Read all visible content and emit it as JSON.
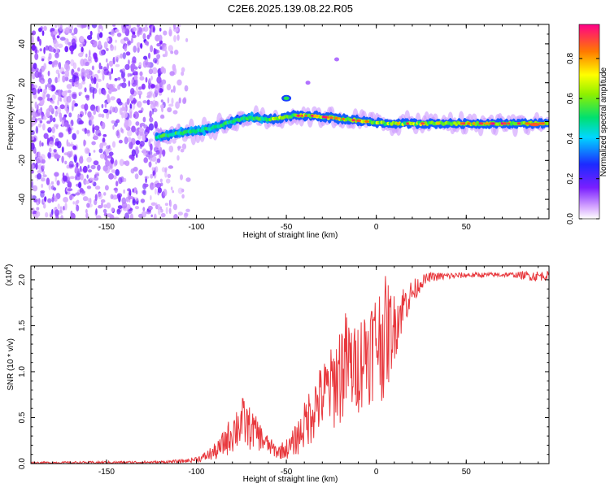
{
  "title": "C2E6.2025.139.08.22.R05",
  "chart_data": [
    {
      "type": "heatmap",
      "name": "spectrogram",
      "xlabel": "Height of straight line (km)",
      "ylabel": "Frequency (Hz)",
      "xlim": [
        -192,
        96
      ],
      "ylim": [
        -50,
        50
      ],
      "xticks": [
        -150,
        -100,
        -50,
        0,
        50
      ],
      "xtick_labels": [
        "-150",
        "-100",
        "-50",
        "0",
        "50"
      ],
      "yticks": [
        -40,
        -20,
        0,
        20,
        40
      ],
      "ytick_labels": [
        "-40",
        "-20",
        "0",
        "20",
        "40"
      ],
      "colorbar": {
        "label": "Normalized spectral amplitude",
        "range": [
          0,
          0.97
        ],
        "ticks": [
          0.0,
          0.2,
          0.4,
          0.6,
          0.8
        ],
        "tick_labels": [
          "0.0",
          "0.2",
          "0.4",
          "0.6",
          "0.8"
        ]
      },
      "noise_region": {
        "x": [
          -192,
          -118
        ],
        "amplitude": "low"
      },
      "ridge": [
        {
          "x": -122,
          "y": -8
        },
        {
          "x": -110,
          "y": -6
        },
        {
          "x": -100,
          "y": -5
        },
        {
          "x": -90,
          "y": -3
        },
        {
          "x": -80,
          "y": 0
        },
        {
          "x": -70,
          "y": 2
        },
        {
          "x": -60,
          "y": 1
        },
        {
          "x": -52,
          "y": 2
        },
        {
          "x": -45,
          "y": 3
        },
        {
          "x": -35,
          "y": 3
        },
        {
          "x": -25,
          "y": 2
        },
        {
          "x": -15,
          "y": 1
        },
        {
          "x": -5,
          "y": 0
        },
        {
          "x": 5,
          "y": -1
        },
        {
          "x": 20,
          "y": -1
        },
        {
          "x": 40,
          "y": -1
        },
        {
          "x": 60,
          "y": -1
        },
        {
          "x": 80,
          "y": -1
        },
        {
          "x": 95,
          "y": -1
        }
      ],
      "branch": [
        {
          "x": -50,
          "y": 12
        },
        {
          "x": -38,
          "y": 20
        },
        {
          "x": -22,
          "y": 32
        }
      ]
    },
    {
      "type": "line",
      "name": "snr",
      "xlabel": "Height of straight line (km)",
      "ylabel": "SNR (10 * v/v)",
      "scale_label": "(x10",
      "scale_exponent": "4",
      "multiplier": 10000,
      "xlim": [
        -192,
        96
      ],
      "ylim": [
        0,
        2.15
      ],
      "xticks": [
        -150,
        -100,
        -50,
        0,
        50
      ],
      "xtick_labels": [
        "-150",
        "-100",
        "-50",
        "0",
        "50"
      ],
      "yticks": [
        0.0,
        0.5,
        1.0,
        1.5,
        2.0
      ],
      "ytick_labels": [
        "0.0",
        "0.5",
        "1.0",
        "1.5",
        "2.0"
      ],
      "color": "#e8383d",
      "envelope": [
        {
          "x": -192,
          "lo": 0.0,
          "hi": 0.02
        },
        {
          "x": -120,
          "lo": 0.0,
          "hi": 0.03
        },
        {
          "x": -105,
          "lo": 0.01,
          "hi": 0.05
        },
        {
          "x": -97,
          "lo": 0.02,
          "hi": 0.1
        },
        {
          "x": -88,
          "lo": 0.04,
          "hi": 0.25
        },
        {
          "x": -80,
          "lo": 0.1,
          "hi": 0.55
        },
        {
          "x": -75,
          "lo": 0.12,
          "hi": 0.75
        },
        {
          "x": -68,
          "lo": 0.15,
          "hi": 0.55
        },
        {
          "x": -60,
          "lo": 0.1,
          "hi": 0.3
        },
        {
          "x": -55,
          "lo": 0.05,
          "hi": 0.2
        },
        {
          "x": -48,
          "lo": 0.05,
          "hi": 0.3
        },
        {
          "x": -42,
          "lo": 0.1,
          "hi": 0.55
        },
        {
          "x": -36,
          "lo": 0.2,
          "hi": 0.9
        },
        {
          "x": -30,
          "lo": 0.3,
          "hi": 1.1
        },
        {
          "x": -24,
          "lo": 0.35,
          "hi": 1.3
        },
        {
          "x": -18,
          "lo": 0.4,
          "hi": 1.7
        },
        {
          "x": -12,
          "lo": 0.5,
          "hi": 1.5
        },
        {
          "x": -6,
          "lo": 0.6,
          "hi": 1.75
        },
        {
          "x": 0,
          "lo": 0.7,
          "hi": 1.9
        },
        {
          "x": 5,
          "lo": 0.65,
          "hi": 2.05
        },
        {
          "x": 10,
          "lo": 1.1,
          "hi": 1.85
        },
        {
          "x": 15,
          "lo": 1.45,
          "hi": 1.95
        },
        {
          "x": 20,
          "lo": 1.7,
          "hi": 2.0
        },
        {
          "x": 25,
          "lo": 1.9,
          "hi": 2.05
        },
        {
          "x": 30,
          "lo": 1.98,
          "hi": 2.08
        },
        {
          "x": 50,
          "lo": 2.02,
          "hi": 2.08
        },
        {
          "x": 75,
          "lo": 2.03,
          "hi": 2.08
        },
        {
          "x": 88,
          "lo": 1.98,
          "hi": 2.1
        },
        {
          "x": 96,
          "lo": 2.0,
          "hi": 2.09
        }
      ]
    }
  ]
}
